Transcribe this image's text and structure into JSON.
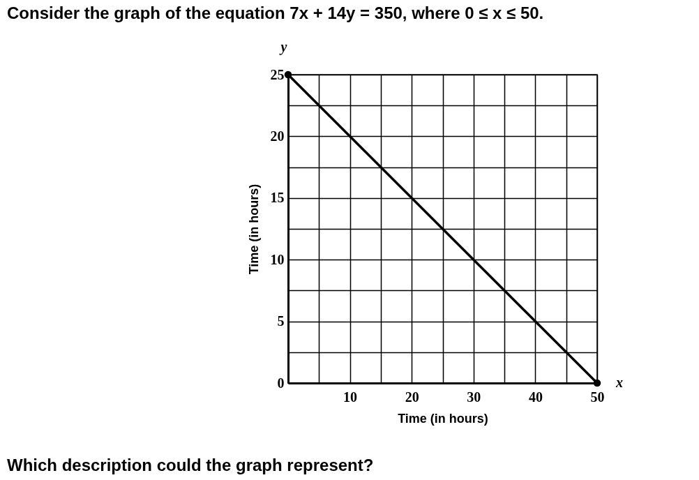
{
  "chart_data": {
    "type": "line",
    "title": "Consider the graph of the equation 7x + 14y = 350, where 0 ≤ x ≤ 50.",
    "xlabel": "Time (in hours)",
    "ylabel": "Time (in hours)",
    "x": [
      0,
      50
    ],
    "series": [
      {
        "color": "#000000",
        "values": [
          25,
          0
        ]
      }
    ],
    "xlim": [
      0,
      50
    ],
    "ylim": [
      0,
      25
    ],
    "xticks": [
      {
        "value": 0,
        "label": null
      },
      {
        "value": 5,
        "label": null
      },
      10,
      {
        "value": 15,
        "label": null
      },
      20,
      {
        "value": 25,
        "label": null
      },
      30,
      {
        "value": 35,
        "label": null
      },
      40,
      {
        "value": 45,
        "label": null
      },
      50
    ],
    "yticks": [
      0,
      {
        "value": 2.5,
        "label": null
      },
      5,
      {
        "value": 7.5,
        "label": null
      },
      10,
      {
        "value": 12.5,
        "label": null
      },
      15,
      {
        "value": 17.5,
        "label": null
      },
      20,
      {
        "value": 22.5,
        "label": null
      },
      25
    ],
    "grid": true,
    "marker": "circle",
    "line_style": "solid",
    "annotations": [
      "y",
      "x",
      "Which description could the graph represent?"
    ]
  }
}
